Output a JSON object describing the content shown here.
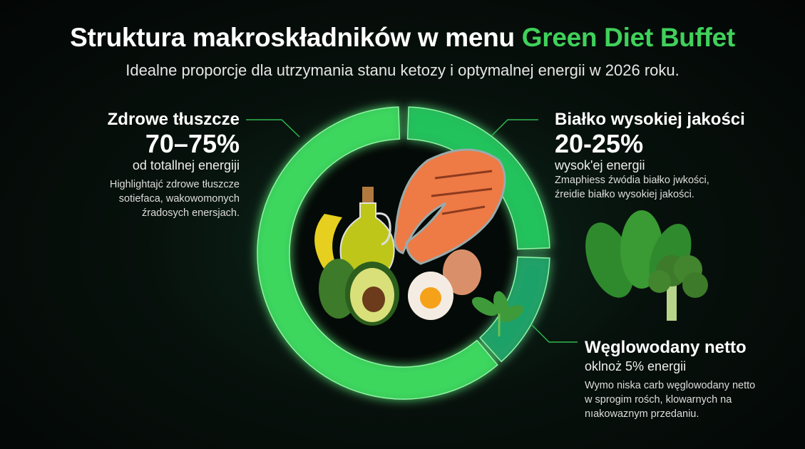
{
  "title": {
    "main": "Struktura makroskładników w menu ",
    "accent": "Green Diet Buffet",
    "accent_color": "#3fd15b"
  },
  "subtitle": "Idealne proporcje dla utrzymania stanu ketozy i optymalnej energii w 2026 roku.",
  "fats": {
    "heading": "Zdrowe tłuszcze",
    "percent": "70–75%",
    "sub": "od totallnej energiji",
    "desc": [
      "Highlightaјć zdrowe tłuszcze",
      "sotiefaca, wakowomonych",
      "źradosych enersjach."
    ]
  },
  "protein": {
    "heading": "Białko wysokiej jakości",
    "percent": "20-25%",
    "sub": "wysok'ej energii",
    "desc": [
      "Zmaphiess źwódia białko jwkości,",
      "źreidie białko wysokiej jakości."
    ]
  },
  "carbs": {
    "heading": "Węglowodany netto",
    "sub": "oklnoż 5% energii",
    "desc": [
      "Wymo niska carb węglowodany netto",
      "w sprogim rośch, klowarnych na",
      "nıakowaznym przedaniu."
    ]
  },
  "chart_data": {
    "type": "pie",
    "style": "donut",
    "categories": [
      "Zdrowe tłuszcze",
      "Białko wysokiej jakości",
      "Węglowodany netto"
    ],
    "values": [
      72.5,
      22.5,
      5
    ],
    "ranges": [
      "70–75%",
      "20-25%",
      "5%"
    ],
    "colors": [
      "#3ddc5f",
      "#22c55e",
      "#1ea56a"
    ]
  },
  "icons": [
    "olive-oil-icon",
    "avocado-icon",
    "salmon-icon",
    "egg-icon",
    "spinach-icon",
    "broccoli-icon"
  ]
}
